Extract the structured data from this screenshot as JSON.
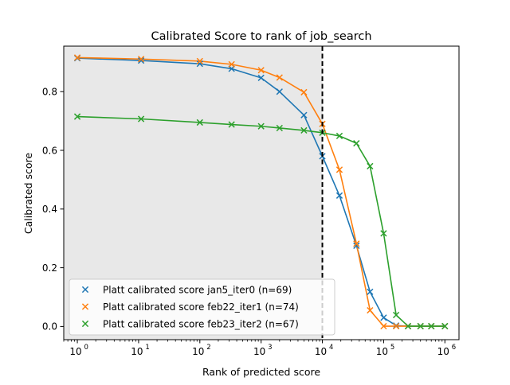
{
  "chart_data": {
    "type": "line",
    "title": "Calibrated Score to rank of job_search",
    "xlabel": "Rank of predicted score",
    "ylabel": "Calibrated score",
    "xscale": "log",
    "xlim": [
      0.6,
      1700000
    ],
    "ylim": [
      -0.045,
      0.955
    ],
    "x_ticks": [
      {
        "value": 1,
        "base": "10",
        "exp": "0"
      },
      {
        "value": 10,
        "base": "10",
        "exp": "1"
      },
      {
        "value": 100,
        "base": "10",
        "exp": "2"
      },
      {
        "value": 1000,
        "base": "10",
        "exp": "3"
      },
      {
        "value": 10000,
        "base": "10",
        "exp": "4"
      },
      {
        "value": 100000,
        "base": "10",
        "exp": "5"
      },
      {
        "value": 1000000,
        "base": "10",
        "exp": "6"
      }
    ],
    "y_ticks": [
      {
        "value": 0.0,
        "label": "0.0"
      },
      {
        "value": 0.2,
        "label": "0.2"
      },
      {
        "value": 0.4,
        "label": "0.4"
      },
      {
        "value": 0.6,
        "label": "0.6"
      },
      {
        "value": 0.8,
        "label": "0.8"
      }
    ],
    "shaded_region": {
      "x_from": 0.6,
      "x_to": 10000,
      "color": "#e8e8e8"
    },
    "vline": {
      "x": 10000,
      "style": "dashed",
      "color": "#000000"
    },
    "grid": false,
    "legend_position": "lower-left",
    "series": [
      {
        "name": "Platt calibrated score jan5_iter0 (n=69)",
        "color": "#1f77b4",
        "x": [
          1,
          11,
          100,
          330,
          1000,
          2000,
          5000,
          10000,
          19000,
          36000,
          60000,
          100000,
          160000,
          250000,
          400000,
          600000,
          1000000
        ],
        "y": [
          0.914,
          0.906,
          0.895,
          0.878,
          0.847,
          0.8,
          0.72,
          0.58,
          0.446,
          0.275,
          0.118,
          0.03,
          0.003,
          0.001,
          0.001,
          0.001,
          0.001
        ]
      },
      {
        "name": "Platt calibrated score feb22_iter1 (n=74)",
        "color": "#ff7f0e",
        "x": [
          1,
          11,
          100,
          330,
          1000,
          2000,
          5000,
          10000,
          19000,
          36000,
          60000,
          100000,
          160000,
          250000,
          400000,
          600000,
          1000000
        ],
        "y": [
          0.916,
          0.911,
          0.904,
          0.893,
          0.873,
          0.848,
          0.798,
          0.69,
          0.534,
          0.282,
          0.055,
          0.001,
          0.001,
          0.001,
          0.001,
          0.001,
          0.001
        ]
      },
      {
        "name": "Platt calibrated score feb23_iter2 (n=67)",
        "color": "#2ca02c",
        "x": [
          1,
          11,
          100,
          330,
          1000,
          2000,
          5000,
          10000,
          19000,
          36000,
          60000,
          100000,
          160000,
          250000,
          400000,
          600000,
          1000000
        ],
        "y": [
          0.715,
          0.707,
          0.695,
          0.688,
          0.682,
          0.676,
          0.668,
          0.66,
          0.649,
          0.624,
          0.546,
          0.317,
          0.039,
          0.001,
          0.001,
          0.001,
          0.001
        ]
      }
    ]
  }
}
